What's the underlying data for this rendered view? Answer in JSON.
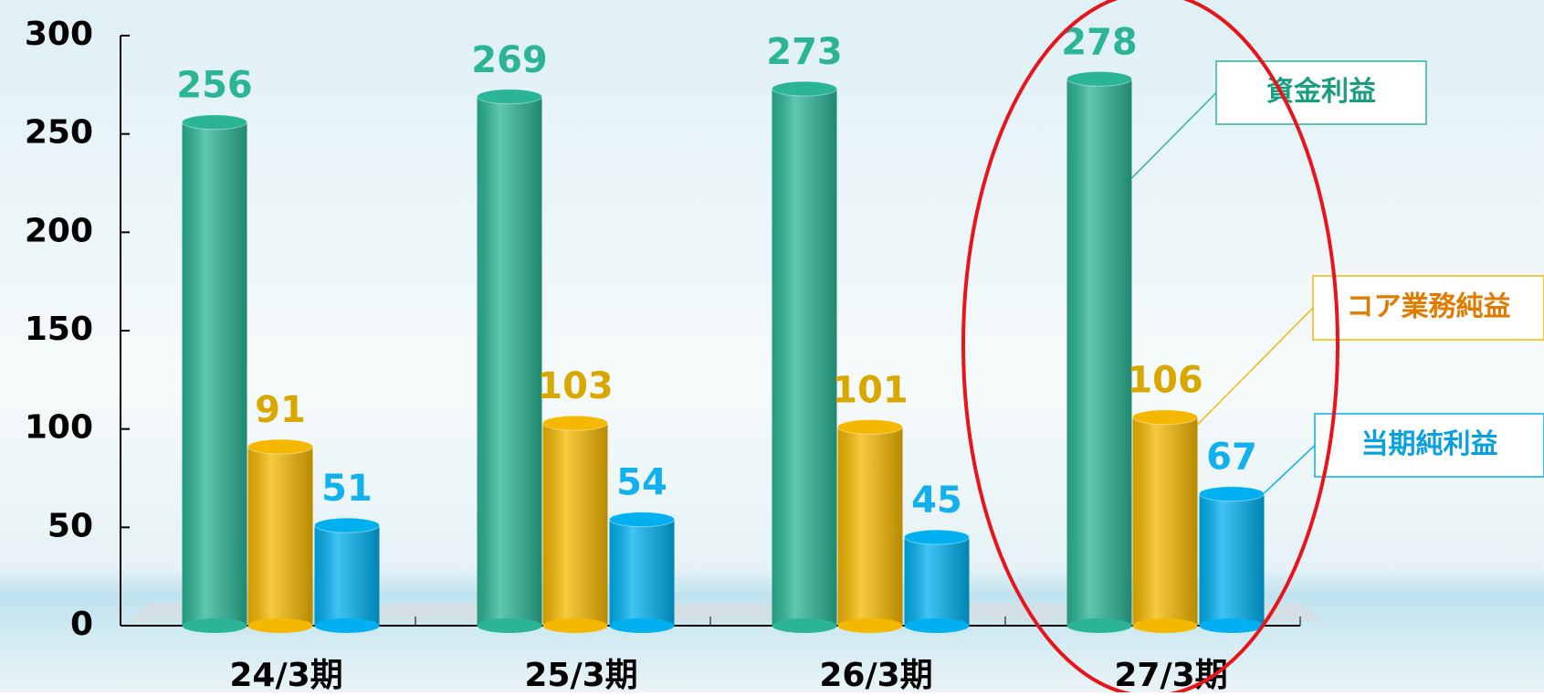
{
  "chart_data": {
    "type": "bar",
    "categories": [
      "24/3期",
      "25/3期",
      "26/3期",
      "27/3期"
    ],
    "series": [
      {
        "name": "資金利益",
        "color": "#2bb596",
        "values": [
          256,
          269,
          273,
          278
        ]
      },
      {
        "name": "コア業務純益",
        "color": "#f5b800",
        "values": [
          91,
          103,
          101,
          106
        ]
      },
      {
        "name": "当期純利益",
        "color": "#00b0f0",
        "values": [
          51,
          54,
          45,
          67
        ]
      }
    ],
    "ylim": [
      0,
      300
    ],
    "yticks": [
      0,
      50,
      100,
      150,
      200,
      250,
      300
    ],
    "legend": "right"
  }
}
